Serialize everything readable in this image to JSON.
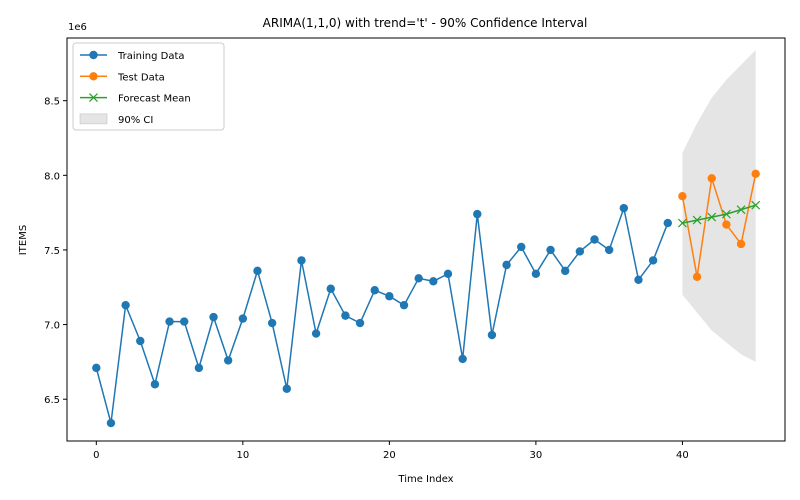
{
  "chart_data": {
    "type": "line",
    "title": "ARIMA(1,1,0) with trend='t' - 90% Confidence Interval",
    "xlabel": "Time Index",
    "ylabel": "ITEMS",
    "y_offset_label": "1e6",
    "xlim": [
      -2,
      47
    ],
    "ylim": [
      6220000,
      8920000
    ],
    "x_ticks": [
      0,
      10,
      20,
      30,
      40
    ],
    "y_ticks": [
      6500000,
      7000000,
      7500000,
      8000000,
      8500000
    ],
    "y_tick_labels": [
      "6.5",
      "7.0",
      "7.5",
      "8.0",
      "8.5"
    ],
    "legend_position": "top-left",
    "series": [
      {
        "name": "Training Data",
        "color": "#1f77b4",
        "marker": "circle",
        "x": [
          0,
          1,
          2,
          3,
          4,
          5,
          6,
          7,
          8,
          9,
          10,
          11,
          12,
          13,
          14,
          15,
          16,
          17,
          18,
          19,
          20,
          21,
          22,
          23,
          24,
          25,
          26,
          27,
          28,
          29,
          30,
          31,
          32,
          33,
          34,
          35,
          36,
          37,
          38,
          39
        ],
        "values": [
          6710000,
          6340000,
          7130000,
          6890000,
          6600000,
          7020000,
          7020000,
          6710000,
          7050000,
          6760000,
          7040000,
          7360000,
          7010000,
          6570000,
          7430000,
          6940000,
          7240000,
          7060000,
          7010000,
          7230000,
          7190000,
          7130000,
          7310000,
          7290000,
          7340000,
          6770000,
          7740000,
          6930000,
          7400000,
          7520000,
          7340000,
          7500000,
          7360000,
          7490000,
          7570000,
          7500000,
          7780000,
          7300000,
          7430000,
          7680000
        ]
      },
      {
        "name": "Test Data",
        "color": "#ff7f0e",
        "marker": "circle",
        "x": [
          40,
          41,
          42,
          43,
          44,
          45
        ],
        "values": [
          7860000,
          7320000,
          7980000,
          7670000,
          7540000,
          8010000
        ]
      },
      {
        "name": "Forecast Mean",
        "color": "#2ca02c",
        "marker": "x",
        "x": [
          40,
          41,
          42,
          43,
          44,
          45
        ],
        "values": [
          7680000,
          7700000,
          7720000,
          7740000,
          7770000,
          7800000
        ]
      }
    ],
    "confidence_interval": {
      "name": "90% CI",
      "color": "#d3d3d3",
      "x": [
        40,
        41,
        42,
        43,
        44,
        45
      ],
      "lower": [
        7200000,
        7080000,
        6960000,
        6880000,
        6800000,
        6750000
      ],
      "upper": [
        8150000,
        8350000,
        8520000,
        8640000,
        8740000,
        8840000
      ]
    }
  }
}
